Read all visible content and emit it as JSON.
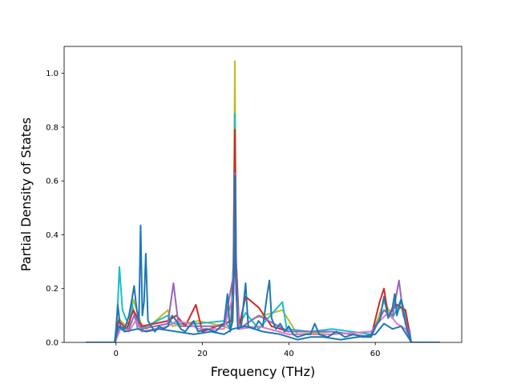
{
  "chart_data": {
    "type": "line",
    "title": "",
    "xlabel": "Frequency (THz)",
    "ylabel": "Partial Density of States",
    "xlim": [
      -12,
      80
    ],
    "ylim": [
      0,
      1.1
    ],
    "x_ticks": [
      0,
      20,
      40,
      60
    ],
    "x_tick_labels": [
      "0",
      "20",
      "40",
      "60"
    ],
    "y_ticks": [
      0.0,
      0.2,
      0.4,
      0.6,
      0.8,
      1.0
    ],
    "y_tick_labels": [
      "0.0",
      "0.2",
      "0.4",
      "0.6",
      "0.8",
      "1.0"
    ],
    "grid": false,
    "legend": "none",
    "series": [
      {
        "color": "#bcbd22",
        "points": [
          [
            -7,
            0
          ],
          [
            -0.2,
            0
          ],
          [
            0.5,
            0.09
          ],
          [
            3,
            0.05
          ],
          [
            4,
            0.16
          ],
          [
            5.8,
            0.07
          ],
          [
            7,
            0.05
          ],
          [
            12,
            0.12
          ],
          [
            13,
            0.06
          ],
          [
            19,
            0.08
          ],
          [
            25,
            0.06
          ],
          [
            26.5,
            0.05
          ],
          [
            27.2,
            0.3
          ],
          [
            27.5,
            1.045
          ],
          [
            27.8,
            0.3
          ],
          [
            28.5,
            0.05
          ],
          [
            32,
            0.09
          ],
          [
            38.5,
            0.12
          ],
          [
            42,
            0.03
          ],
          [
            50,
            0.04
          ],
          [
            59,
            0.02
          ],
          [
            62,
            0.15
          ],
          [
            64,
            0.1
          ],
          [
            66,
            0.13
          ],
          [
            68,
            0.03
          ],
          [
            68.3,
            0
          ],
          [
            75,
            0
          ]
        ]
      },
      {
        "color": "#17becf",
        "points": [
          [
            -7,
            0
          ],
          [
            -0.2,
            0
          ],
          [
            0.3,
            0.1
          ],
          [
            0.8,
            0.28
          ],
          [
            1.5,
            0.12
          ],
          [
            3,
            0.06
          ],
          [
            3.6,
            0.15
          ],
          [
            5,
            0.05
          ],
          [
            7,
            0.06
          ],
          [
            12,
            0.1
          ],
          [
            13,
            0.07
          ],
          [
            19,
            0.07
          ],
          [
            25,
            0.08
          ],
          [
            26.5,
            0.05
          ],
          [
            27.2,
            0.3
          ],
          [
            27.5,
            0.85
          ],
          [
            27.8,
            0.3
          ],
          [
            28.5,
            0.06
          ],
          [
            30,
            0.11
          ],
          [
            33,
            0.05
          ],
          [
            38.5,
            0.15
          ],
          [
            39.5,
            0.05
          ],
          [
            45,
            0.04
          ],
          [
            50,
            0.05
          ],
          [
            59,
            0.03
          ],
          [
            62,
            0.12
          ],
          [
            64,
            0.09
          ],
          [
            66,
            0.16
          ],
          [
            68,
            0.04
          ],
          [
            68.3,
            0
          ],
          [
            75,
            0
          ]
        ]
      },
      {
        "color": "#d62728",
        "points": [
          [
            -7,
            0
          ],
          [
            -0.2,
            0
          ],
          [
            0.6,
            0.08
          ],
          [
            2.5,
            0.05
          ],
          [
            4,
            0.12
          ],
          [
            6,
            0.06
          ],
          [
            12,
            0.08
          ],
          [
            14,
            0.1
          ],
          [
            16,
            0.06
          ],
          [
            18.5,
            0.14
          ],
          [
            20,
            0.04
          ],
          [
            25,
            0.07
          ],
          [
            26.8,
            0.08
          ],
          [
            27.2,
            0.3
          ],
          [
            27.5,
            0.79
          ],
          [
            27.8,
            0.3
          ],
          [
            28.5,
            0.06
          ],
          [
            30,
            0.17
          ],
          [
            33,
            0.13
          ],
          [
            36,
            0.06
          ],
          [
            40,
            0.04
          ],
          [
            50,
            0.04
          ],
          [
            59,
            0.02
          ],
          [
            61,
            0.15
          ],
          [
            62,
            0.2
          ],
          [
            63,
            0.1
          ],
          [
            65,
            0.14
          ],
          [
            67,
            0.12
          ],
          [
            68,
            0.03
          ],
          [
            68.3,
            0
          ],
          [
            75,
            0
          ]
        ]
      },
      {
        "color": "#9467bd",
        "points": [
          [
            -7,
            0
          ],
          [
            -0.2,
            0
          ],
          [
            0.8,
            0.06
          ],
          [
            3,
            0.05
          ],
          [
            4.2,
            0.1
          ],
          [
            6,
            0.05
          ],
          [
            12,
            0.07
          ],
          [
            13.3,
            0.22
          ],
          [
            14.5,
            0.06
          ],
          [
            19,
            0.06
          ],
          [
            25,
            0.06
          ],
          [
            27.2,
            0.25
          ],
          [
            27.5,
            0.63
          ],
          [
            27.8,
            0.25
          ],
          [
            28.5,
            0.05
          ],
          [
            33,
            0.1
          ],
          [
            40,
            0.04
          ],
          [
            50,
            0.04
          ],
          [
            59,
            0.02
          ],
          [
            62,
            0.12
          ],
          [
            64,
            0.1
          ],
          [
            65.5,
            0.23
          ],
          [
            66.5,
            0.1
          ],
          [
            68,
            0.03
          ],
          [
            68.3,
            0
          ],
          [
            75,
            0
          ]
        ]
      },
      {
        "color": "#e377c2",
        "points": [
          [
            -7,
            0
          ],
          [
            -0.2,
            0
          ],
          [
            1,
            0.05
          ],
          [
            3,
            0.04
          ],
          [
            4.5,
            0.08
          ],
          [
            6,
            0.04
          ],
          [
            12,
            0.06
          ],
          [
            14,
            0.08
          ],
          [
            17,
            0.07
          ],
          [
            19,
            0.05
          ],
          [
            25,
            0.05
          ],
          [
            27.2,
            0.18
          ],
          [
            27.5,
            0.4
          ],
          [
            27.8,
            0.18
          ],
          [
            28.5,
            0.05
          ],
          [
            33,
            0.06
          ],
          [
            40,
            0.03
          ],
          [
            50,
            0.03
          ],
          [
            59,
            0.04
          ],
          [
            61,
            0.08
          ],
          [
            63,
            0.11
          ],
          [
            65,
            0.07
          ],
          [
            67,
            0.05
          ],
          [
            68,
            0.02
          ],
          [
            68.3,
            0
          ],
          [
            75,
            0
          ]
        ]
      },
      {
        "color": "#1f77b4",
        "points": [
          [
            -7,
            0
          ],
          [
            -0.3,
            0
          ],
          [
            0,
            0.05
          ],
          [
            0.4,
            0.14
          ],
          [
            1,
            0.06
          ],
          [
            2,
            0.05
          ],
          [
            3,
            0.1
          ],
          [
            3.7,
            0.16
          ],
          [
            4.2,
            0.21
          ],
          [
            4.8,
            0.12
          ],
          [
            5.3,
            0.08
          ],
          [
            5.7,
            0.435
          ],
          [
            6.1,
            0.1
          ],
          [
            6.5,
            0.15
          ],
          [
            6.9,
            0.33
          ],
          [
            7.4,
            0.08
          ],
          [
            9,
            0.04
          ],
          [
            10,
            0.06
          ],
          [
            11,
            0.05
          ],
          [
            12,
            0.06
          ],
          [
            13,
            0.1
          ],
          [
            14,
            0.08
          ],
          [
            15,
            0.05
          ],
          [
            16,
            0.04
          ],
          [
            17,
            0.06
          ],
          [
            18,
            0.08
          ],
          [
            19,
            0.04
          ],
          [
            21,
            0.05
          ],
          [
            23,
            0.04
          ],
          [
            25,
            0.07
          ],
          [
            25.8,
            0.18
          ],
          [
            26.4,
            0.04
          ],
          [
            27,
            0.08
          ],
          [
            27.3,
            0.25
          ],
          [
            27.5,
            0.62
          ],
          [
            27.7,
            0.25
          ],
          [
            28.2,
            0.05
          ],
          [
            29,
            0.06
          ],
          [
            30,
            0.22
          ],
          [
            30.6,
            0.06
          ],
          [
            32,
            0.05
          ],
          [
            33,
            0.08
          ],
          [
            34,
            0.06
          ],
          [
            35,
            0.18
          ],
          [
            35.5,
            0.23
          ],
          [
            36,
            0.09
          ],
          [
            37,
            0.05
          ],
          [
            38,
            0.07
          ],
          [
            39,
            0.04
          ],
          [
            40,
            0.06
          ],
          [
            41,
            0.03
          ],
          [
            42,
            0.02
          ],
          [
            44,
            0.03
          ],
          [
            45,
            0.03
          ],
          [
            46,
            0.07
          ],
          [
            47,
            0.03
          ],
          [
            49,
            0.02
          ],
          [
            51,
            0.04
          ],
          [
            53,
            0.02
          ],
          [
            55,
            0.03
          ],
          [
            57,
            0.02
          ],
          [
            59,
            0.02
          ],
          [
            60,
            0.06
          ],
          [
            61,
            0.08
          ],
          [
            62,
            0.17
          ],
          [
            63,
            0.09
          ],
          [
            64,
            0.13
          ],
          [
            64.5,
            0.18
          ],
          [
            65,
            0.1
          ],
          [
            66,
            0.16
          ],
          [
            67,
            0.07
          ],
          [
            67.5,
            0.04
          ],
          [
            68,
            0.02
          ],
          [
            68.3,
            0
          ],
          [
            75,
            0
          ]
        ]
      },
      {
        "color": "#1f77b4",
        "points": [
          [
            -7,
            0
          ],
          [
            -0.2,
            0
          ],
          [
            0.5,
            0.06
          ],
          [
            2,
            0.04
          ],
          [
            5,
            0.05
          ],
          [
            7,
            0.04
          ],
          [
            10,
            0.05
          ],
          [
            14,
            0.04
          ],
          [
            18,
            0.03
          ],
          [
            22,
            0.04
          ],
          [
            25,
            0.03
          ],
          [
            27,
            0.05
          ],
          [
            30,
            0.06
          ],
          [
            34,
            0.04
          ],
          [
            38,
            0.03
          ],
          [
            42,
            0.01
          ],
          [
            45,
            0.02
          ],
          [
            48,
            0.02
          ],
          [
            52,
            0.01
          ],
          [
            56,
            0.02
          ],
          [
            60,
            0.03
          ],
          [
            62,
            0.07
          ],
          [
            64,
            0.05
          ],
          [
            66,
            0.06
          ],
          [
            68,
            0.01
          ],
          [
            68.3,
            0
          ],
          [
            75,
            0
          ]
        ]
      }
    ]
  }
}
